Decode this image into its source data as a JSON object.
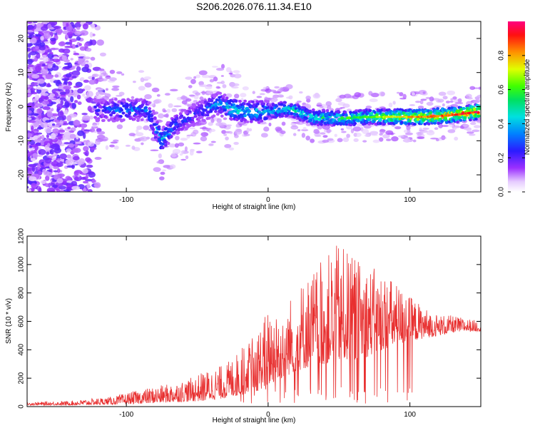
{
  "title": "S206.2026.076.11.34.E10",
  "chart_data": [
    {
      "type": "heatmap",
      "name": "spectrogram",
      "xlabel": "Height of straight line (km)",
      "ylabel": "Frequency (Hz)",
      "xlim": [
        -170,
        150
      ],
      "ylim": [
        -25,
        25
      ],
      "xticks": [
        -100,
        0,
        100
      ],
      "yticks": [
        -20,
        -10,
        0,
        10,
        20
      ],
      "colorbar": {
        "label": "Normalized spectral amplitude",
        "range": [
          0,
          1
        ],
        "ticks": [
          0.0,
          0.2,
          0.4,
          0.6,
          0.8
        ],
        "tick_labels": [
          "0.0",
          "0.2",
          "0.4",
          "0.6",
          "0.8"
        ],
        "colors": [
          "#ffffff",
          "#d9b3ff",
          "#8a2be2",
          "#2020ff",
          "#00bfff",
          "#00e0b0",
          "#00e000",
          "#e0e000",
          "#ff8000",
          "#ff0000",
          "#ff00a0"
        ]
      },
      "ridge": {
        "x": [
          -118,
          -100,
          -85,
          -75,
          -65,
          -50,
          -35,
          -25,
          -10,
          0,
          15,
          30,
          50,
          70,
          90,
          110,
          130,
          148
        ],
        "y": [
          -1,
          -1,
          -1,
          -10,
          -5,
          -2,
          1,
          -1,
          -1.5,
          -1.5,
          -0.5,
          -3,
          -3.5,
          -3,
          -3,
          -3,
          -2.5,
          -1.5
        ],
        "peak_amplitude": [
          0.3,
          0.4,
          0.35,
          0.5,
          0.35,
          0.3,
          0.4,
          0.55,
          0.5,
          0.45,
          0.55,
          0.55,
          0.6,
          0.65,
          0.8,
          0.9,
          0.95,
          1.0
        ]
      }
    },
    {
      "type": "line",
      "name": "snr",
      "xlabel": "Height of straight line (km)",
      "ylabel": "SNR (10 * v/v)",
      "xlim": [
        -170,
        150
      ],
      "ylim": [
        0,
        1200
      ],
      "xticks": [
        -100,
        0,
        100
      ],
      "yticks": [
        0,
        200,
        400,
        600,
        800,
        1000,
        1200
      ],
      "color": "#e83030",
      "envelope": {
        "x": [
          -170,
          -140,
          -110,
          -90,
          -70,
          -55,
          -45,
          -30,
          -20,
          -10,
          0,
          10,
          20,
          30,
          40,
          50,
          60,
          70,
          80,
          90,
          100,
          110,
          120,
          130,
          140,
          150
        ],
        "base": [
          10,
          10,
          15,
          20,
          30,
          35,
          40,
          60,
          80,
          100,
          150,
          200,
          250,
          280,
          300,
          320,
          330,
          350,
          400,
          430,
          460,
          480,
          500,
          520,
          530,
          530
        ],
        "peak": [
          30,
          40,
          70,
          120,
          160,
          200,
          250,
          300,
          400,
          500,
          700,
          680,
          850,
          950,
          1050,
          1150,
          1050,
          1000,
          950,
          880,
          780,
          700,
          650,
          640,
          620,
          600
        ]
      }
    }
  ]
}
